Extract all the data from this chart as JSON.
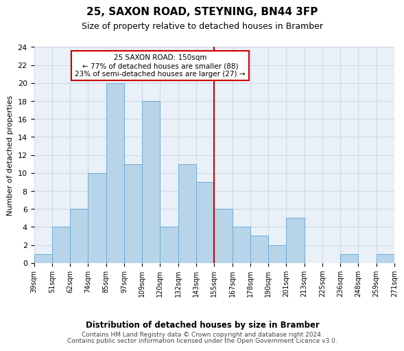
{
  "title": "25, SAXON ROAD, STEYNING, BN44 3FP",
  "subtitle": "Size of property relative to detached houses in Bramber",
  "xlabel_bottom": "Distribution of detached houses by size in Bramber",
  "ylabel": "Number of detached properties",
  "footnote1": "Contains HM Land Registry data © Crown copyright and database right 2024.",
  "footnote2": "Contains public sector information licensed under the Open Government Licence v3.0.",
  "bins": [
    "39sqm",
    "51sqm",
    "62sqm",
    "74sqm",
    "85sqm",
    "97sqm",
    "109sqm",
    "120sqm",
    "132sqm",
    "143sqm",
    "155sqm",
    "167sqm",
    "178sqm",
    "190sqm",
    "201sqm",
    "213sqm",
    "225sqm",
    "236sqm",
    "248sqm",
    "259sqm",
    "271sqm"
  ],
  "values": [
    1,
    4,
    6,
    10,
    20,
    11,
    18,
    4,
    11,
    9,
    6,
    4,
    3,
    2,
    5,
    0,
    0,
    1,
    0,
    1
  ],
  "bar_color": "#b8d4e8",
  "bar_edge_color": "#6aaed6",
  "grid_color": "#d0d8e8",
  "background_color": "#eaf0f8",
  "annotation_box_color": "#cc0000",
  "vline_color": "#cc0000",
  "vline_x_label": "155sqm",
  "annotation_title": "25 SAXON ROAD: 150sqm",
  "annotation_line1": "← 77% of detached houses are smaller (88)",
  "annotation_line2": "23% of semi-detached houses are larger (27) →",
  "ylim": [
    0,
    24
  ],
  "yticks": [
    0,
    2,
    4,
    6,
    8,
    10,
    12,
    14,
    16,
    18,
    20,
    22,
    24
  ]
}
